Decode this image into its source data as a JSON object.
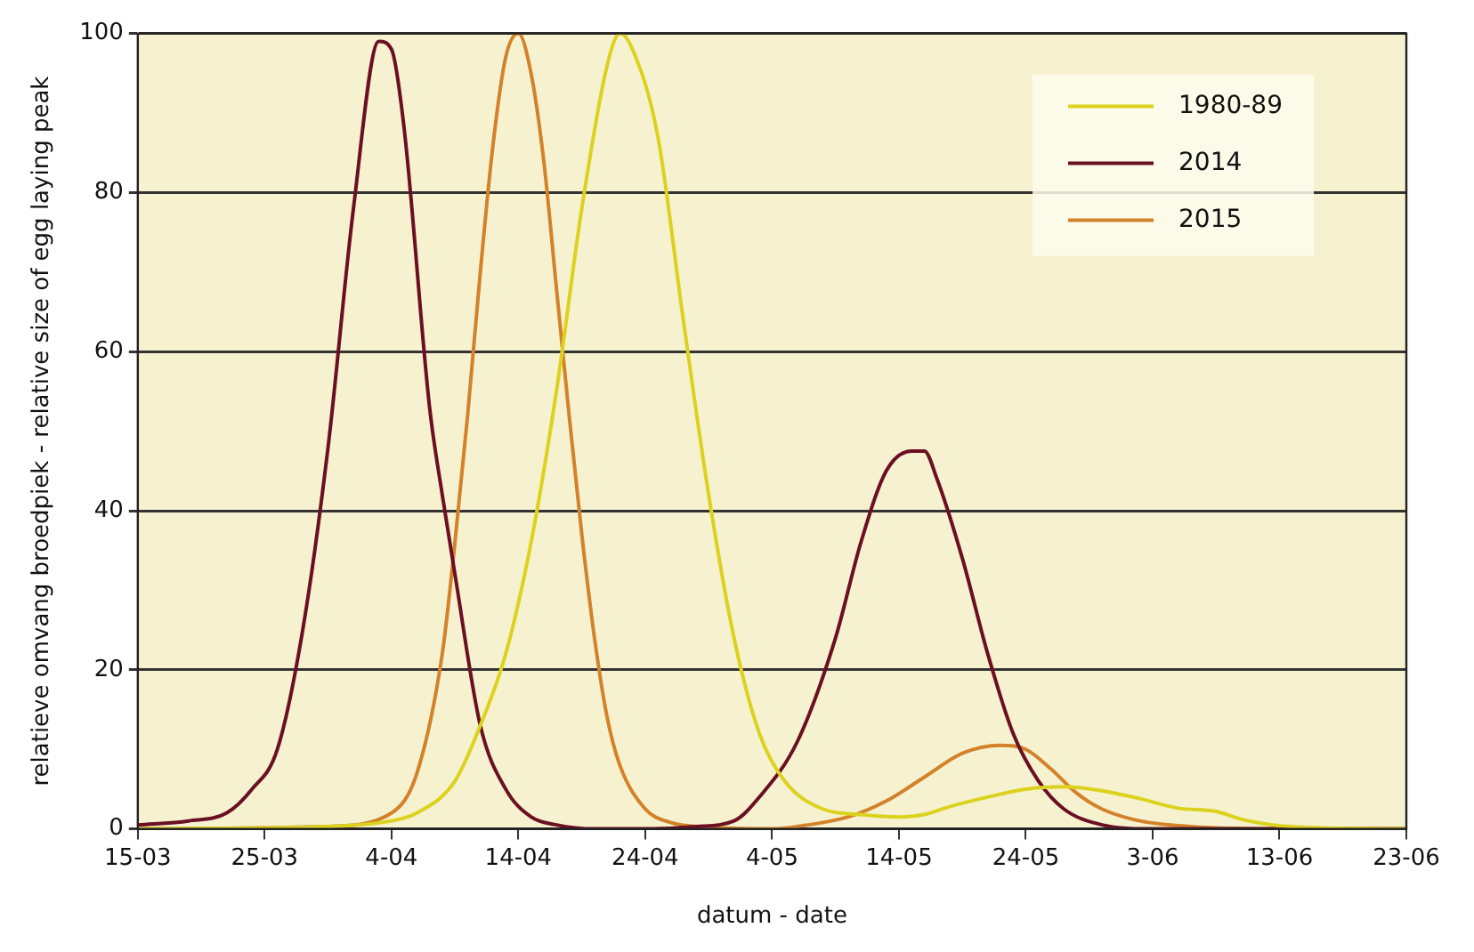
{
  "chart_data": {
    "type": "line",
    "xlabel": "datum - date",
    "ylabel": "relatieve omvang broedpiek - relative size of egg laying peak",
    "xlim": [
      "--03-15",
      "--06-23"
    ],
    "xticks": [
      {
        "value": "--03-15",
        "label": "15-03"
      },
      {
        "value": "--03-25",
        "label": "25-03"
      },
      {
        "value": "--04-04",
        "label": "4-04"
      },
      {
        "value": "--04-14",
        "label": "14-04"
      },
      {
        "value": "--04-24",
        "label": "24-04"
      },
      {
        "value": "--05-04",
        "label": "4-05"
      },
      {
        "value": "--05-14",
        "label": "14-05"
      },
      {
        "value": "--05-24",
        "label": "24-05"
      },
      {
        "value": "--06-03",
        "label": "3-06"
      },
      {
        "value": "--06-13",
        "label": "13-06"
      },
      {
        "value": "--06-23",
        "label": "23-06"
      }
    ],
    "ylim": [
      0,
      100
    ],
    "yticks": [
      0,
      20,
      40,
      60,
      80,
      100
    ],
    "grid": "y",
    "legend": "top right",
    "marker": "none",
    "line_style": "solid",
    "series": [
      {
        "name": "1980-89",
        "color": "#dcd21e",
        "x": [
          "--03-15",
          "--03-30",
          "--04-04",
          "--04-06",
          "--04-09",
          "--04-11",
          "--04-13",
          "--04-15",
          "--04-17",
          "--04-19",
          "--04-21",
          "--04-22",
          "--04-23",
          "--04-25",
          "--04-27",
          "--04-29",
          "--05-01",
          "--05-03",
          "--05-05",
          "--05-08",
          "--05-11",
          "--05-14",
          "--05-16",
          "--05-18",
          "--05-21",
          "--05-24",
          "--05-27",
          "--05-30",
          "--06-02",
          "--06-05",
          "--06-08",
          "--06-10",
          "--06-13",
          "--06-17",
          "--06-23"
        ],
        "values": [
          0,
          0.3,
          1,
          2,
          6,
          13,
          22,
          36,
          55,
          78,
          96,
          100,
          98,
          87,
          64,
          42,
          24,
          12,
          6,
          2.5,
          1.8,
          1.5,
          1.8,
          2.8,
          4,
          5,
          5.3,
          4.8,
          3.8,
          2.6,
          2.2,
          1.2,
          0.4,
          0.1,
          0
        ]
      },
      {
        "name": "2014",
        "color": "#6b0f23",
        "x": [
          "--03-15",
          "--03-19",
          "--03-22",
          "--03-24",
          "--03-26",
          "--03-28",
          "--03-30",
          "--04-01",
          "--04-03",
          "--04-04",
          "--04-05",
          "--04-07",
          "--04-08",
          "--04-09",
          "--04-11",
          "--04-13",
          "--04-15",
          "--04-17",
          "--04-20",
          "--04-24",
          "--04-28",
          "--05-01",
          "--05-03",
          "--05-06",
          "--05-09",
          "--05-11",
          "--05-13",
          "--05-15",
          "--05-16",
          "--05-17",
          "--05-19",
          "--05-21",
          "--05-23",
          "--05-25",
          "--05-27",
          "--05-30",
          "--06-03",
          "--06-23"
        ],
        "values": [
          0.5,
          1,
          2,
          5,
          10,
          25,
          48,
          78,
          99,
          98,
          88,
          53,
          42,
          32,
          13,
          5,
          1.5,
          0.5,
          0,
          0,
          0.3,
          1,
          4,
          11,
          24,
          36,
          45,
          47.5,
          47.5,
          44,
          34,
          22,
          12,
          6,
          2.5,
          0.5,
          0,
          0
        ]
      },
      {
        "name": "2015",
        "color": "#d4822a",
        "x": [
          "--03-15",
          "--03-30",
          "--04-04",
          "--04-06",
          "--04-08",
          "--04-09",
          "--04-10",
          "--04-11",
          "--04-12",
          "--04-13",
          "--04-14",
          "--04-15",
          "--04-16",
          "--04-17",
          "--04-18",
          "--04-19",
          "--04-20",
          "--04-21",
          "--04-22",
          "--04-24",
          "--04-26",
          "--04-29",
          "--05-04",
          "--05-06",
          "--05-10",
          "--05-13",
          "--05-16",
          "--05-19",
          "--05-22",
          "--05-24",
          "--05-26",
          "--05-28",
          "--05-30",
          "--06-02",
          "--06-06",
          "--06-13",
          "--06-23"
        ],
        "values": [
          0,
          0.3,
          2,
          7,
          22,
          36,
          52,
          70,
          86,
          97,
          100,
          95,
          84,
          68,
          52,
          37,
          24,
          14,
          8,
          2.5,
          0.8,
          0.2,
          0,
          0.3,
          1.5,
          3.5,
          6.5,
          9.5,
          10.5,
          10,
          7.5,
          4.5,
          2.5,
          1,
          0.3,
          0,
          0
        ]
      }
    ]
  }
}
